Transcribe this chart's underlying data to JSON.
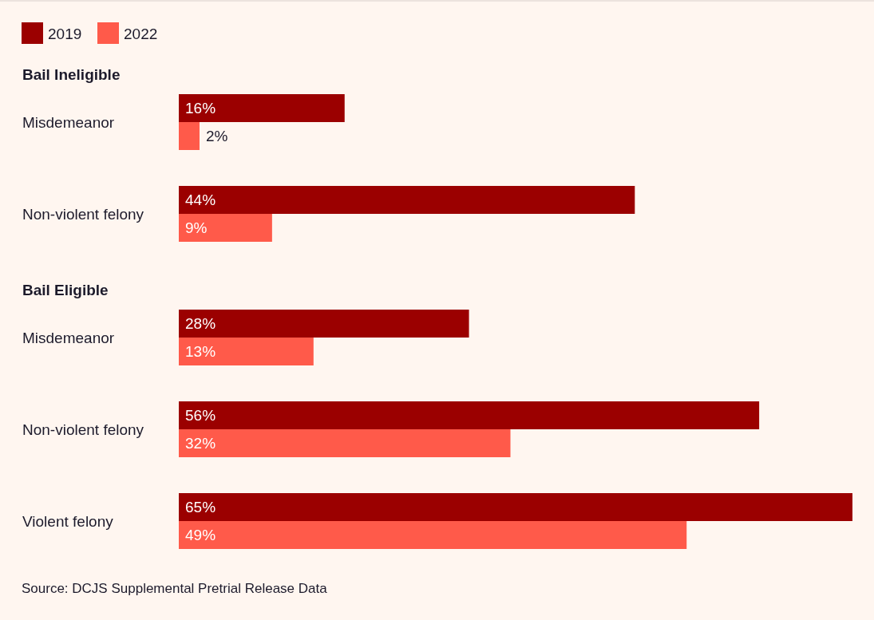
{
  "chart_data": {
    "type": "bar",
    "orientation": "horizontal",
    "categories": [
      "Misdemeanor",
      "Non-violent felony",
      "Misdemeanor",
      "Non-violent felony",
      "Violent felony"
    ],
    "series": [
      {
        "name": "2019",
        "color": "#9b0000",
        "values": [
          16,
          44,
          28,
          56,
          65
        ],
        "value_labels": [
          "16%",
          "44%",
          "28%",
          "56%",
          "65%"
        ]
      },
      {
        "name": "2022",
        "color": "#ff5a4a",
        "values": [
          2,
          9,
          13,
          32,
          49
        ],
        "value_labels": [
          "2%",
          "9%",
          "13%",
          "32%",
          "49%"
        ]
      }
    ],
    "legend": "top left",
    "annotations": [
      "Bail Ineligible",
      "Bail Eligible",
      "Source: DCJS Supplemental Pretrial Release Data"
    ]
  }
}
